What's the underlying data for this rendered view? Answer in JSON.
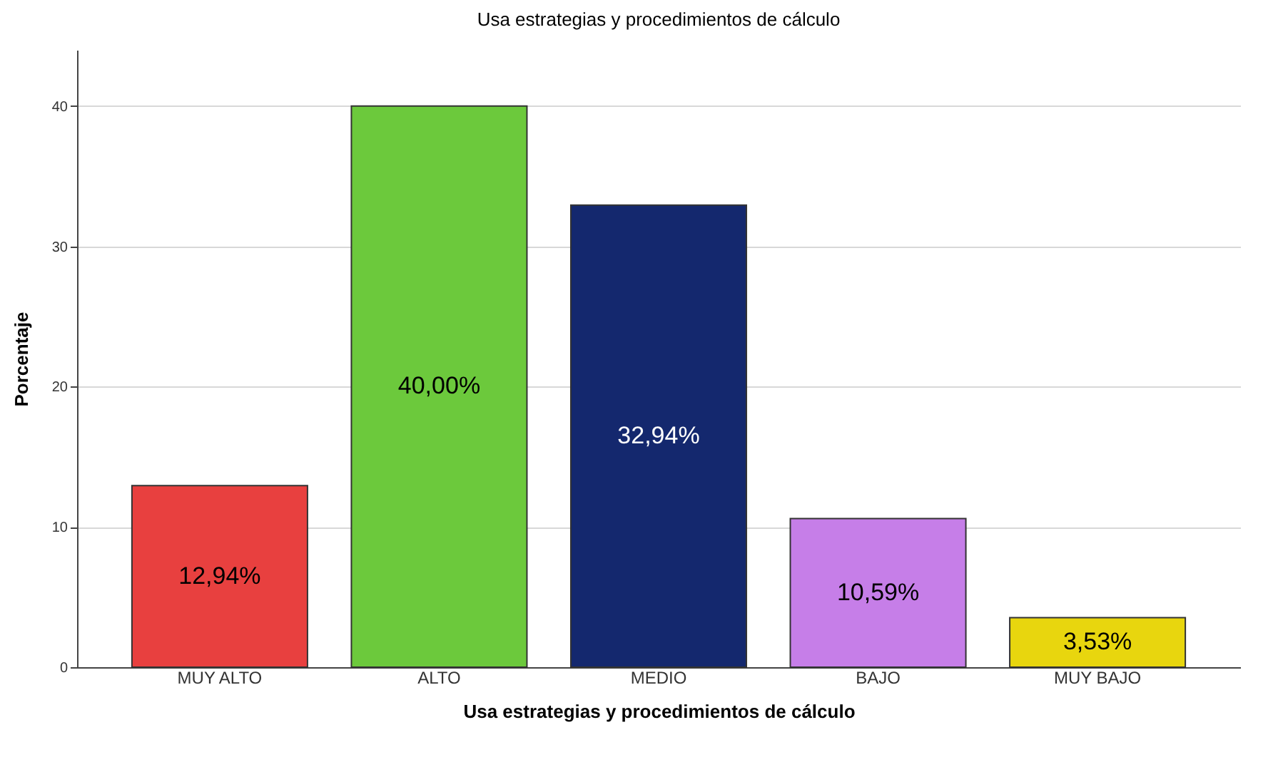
{
  "chart_data": {
    "type": "bar",
    "title": "Usa estrategias y procedimientos de cálculo",
    "xlabel": "Usa estrategias y procedimientos de cálculo",
    "ylabel": "Porcentaje",
    "categories": [
      "MUY ALTO",
      "ALTO",
      "MEDIO",
      "BAJO",
      "MUY BAJO"
    ],
    "values": [
      12.94,
      40.0,
      32.94,
      10.59,
      3.53
    ],
    "colors": [
      "#e8403f",
      "#6cc93c",
      "#14286e",
      "#c67ee8",
      "#e8d60e"
    ],
    "value_labels": [
      "12,94%",
      "40,00%",
      "32,94%",
      "10,59%",
      "3,53%"
    ],
    "ylim": [
      0,
      44
    ],
    "yticks": [
      0,
      10,
      20,
      30,
      40
    ],
    "grid": "y"
  }
}
